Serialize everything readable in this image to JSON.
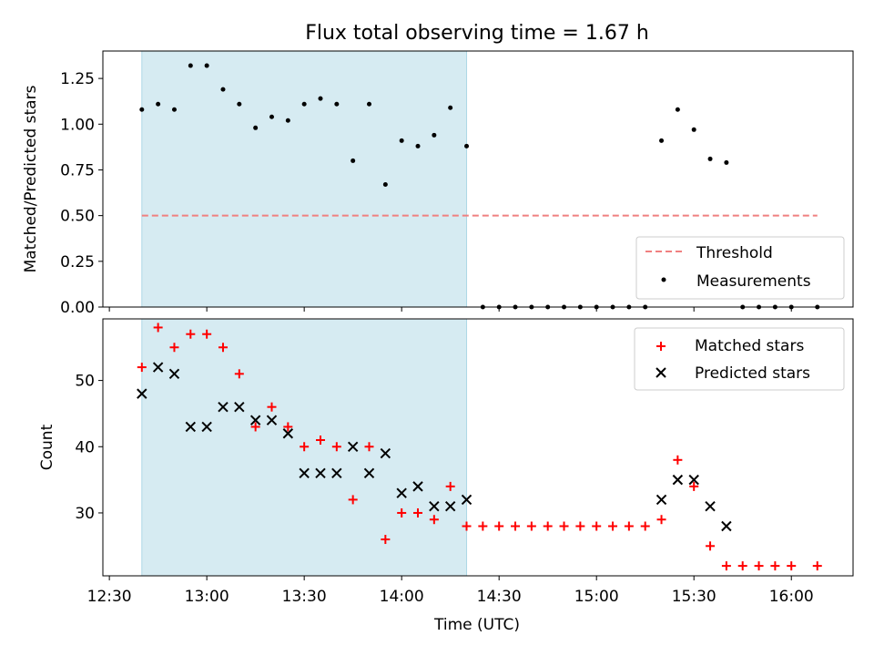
{
  "chart_data": [
    {
      "type": "scatter",
      "title": "Flux total observing time = 1.67 h",
      "ylabel": "Matched/Predicted stars",
      "xlim": [
        "12:28",
        "16:19"
      ],
      "ylim": [
        0,
        1.4
      ],
      "yticks": [
        "0.00",
        "0.25",
        "0.50",
        "0.75",
        "1.00",
        "1.25"
      ],
      "shaded_region": [
        "12:40",
        "14:20"
      ],
      "threshold": {
        "name": "Threshold",
        "value": 0.5,
        "x_range": [
          "12:40",
          "16:08"
        ],
        "color": "#f08080"
      },
      "series": [
        {
          "name": "Measurements",
          "color": "#000000",
          "points": [
            [
              "12:40",
              1.08
            ],
            [
              "12:45",
              1.11
            ],
            [
              "12:50",
              1.08
            ],
            [
              "12:55",
              1.32
            ],
            [
              "13:00",
              1.32
            ],
            [
              "13:05",
              1.19
            ],
            [
              "13:10",
              1.11
            ],
            [
              "13:15",
              0.98
            ],
            [
              "13:20",
              1.04
            ],
            [
              "13:25",
              1.02
            ],
            [
              "13:30",
              1.11
            ],
            [
              "13:35",
              1.14
            ],
            [
              "13:40",
              1.11
            ],
            [
              "13:45",
              0.8
            ],
            [
              "13:50",
              1.11
            ],
            [
              "13:55",
              0.67
            ],
            [
              "14:00",
              0.91
            ],
            [
              "14:05",
              0.88
            ],
            [
              "14:10",
              0.94
            ],
            [
              "14:15",
              1.09
            ],
            [
              "14:20",
              0.88
            ],
            [
              "14:25",
              0.0
            ],
            [
              "14:30",
              0.0
            ],
            [
              "14:35",
              0.0
            ],
            [
              "14:40",
              0.0
            ],
            [
              "14:45",
              0.0
            ],
            [
              "14:50",
              0.0
            ],
            [
              "14:55",
              0.0
            ],
            [
              "15:00",
              0.0
            ],
            [
              "15:05",
              0.0
            ],
            [
              "15:10",
              0.0
            ],
            [
              "15:15",
              0.0
            ],
            [
              "15:20",
              0.91
            ],
            [
              "15:25",
              1.08
            ],
            [
              "15:30",
              0.97
            ],
            [
              "15:35",
              0.81
            ],
            [
              "15:40",
              0.79
            ],
            [
              "15:45",
              0.0
            ],
            [
              "15:50",
              0.0
            ],
            [
              "15:55",
              0.0
            ],
            [
              "16:00",
              0.0
            ],
            [
              "16:08",
              0.0
            ]
          ]
        }
      ],
      "legend": {
        "placement": "lower-right",
        "entries": [
          "Threshold",
          "Measurements"
        ]
      }
    },
    {
      "type": "scatter",
      "xlabel": "Time (UTC)",
      "ylabel": "Count",
      "xlim": [
        "12:28",
        "16:19"
      ],
      "ylim": [
        20.5,
        59.3
      ],
      "xticks": [
        "12:30",
        "13:00",
        "13:30",
        "14:00",
        "14:30",
        "15:00",
        "15:30",
        "16:00"
      ],
      "yticks": [
        "30",
        "40",
        "50"
      ],
      "shaded_region": [
        "12:40",
        "14:20"
      ],
      "series": [
        {
          "name": "Matched stars",
          "marker": "plus",
          "color": "#ff0000",
          "points": [
            [
              "12:40",
              52
            ],
            [
              "12:45",
              58
            ],
            [
              "12:50",
              55
            ],
            [
              "12:55",
              57
            ],
            [
              "13:00",
              57
            ],
            [
              "13:05",
              55
            ],
            [
              "13:10",
              51
            ],
            [
              "13:15",
              43
            ],
            [
              "13:20",
              46
            ],
            [
              "13:25",
              43
            ],
            [
              "13:30",
              40
            ],
            [
              "13:35",
              41
            ],
            [
              "13:40",
              40
            ],
            [
              "13:45",
              32
            ],
            [
              "13:50",
              40
            ],
            [
              "13:55",
              26
            ],
            [
              "14:00",
              30
            ],
            [
              "14:05",
              30
            ],
            [
              "14:10",
              29
            ],
            [
              "14:15",
              34
            ],
            [
              "14:20",
              28
            ],
            [
              "14:25",
              28
            ],
            [
              "14:30",
              28
            ],
            [
              "14:35",
              28
            ],
            [
              "14:40",
              28
            ],
            [
              "14:45",
              28
            ],
            [
              "14:50",
              28
            ],
            [
              "14:55",
              28
            ],
            [
              "15:00",
              28
            ],
            [
              "15:05",
              28
            ],
            [
              "15:10",
              28
            ],
            [
              "15:15",
              28
            ],
            [
              "15:20",
              29
            ],
            [
              "15:25",
              38
            ],
            [
              "15:30",
              34
            ],
            [
              "15:35",
              25
            ],
            [
              "15:40",
              22
            ],
            [
              "15:45",
              22
            ],
            [
              "15:50",
              22
            ],
            [
              "15:55",
              22
            ],
            [
              "16:00",
              22
            ],
            [
              "16:08",
              22
            ]
          ]
        },
        {
          "name": "Predicted stars",
          "marker": "x",
          "color": "#000000",
          "points": [
            [
              "12:40",
              48
            ],
            [
              "12:45",
              52
            ],
            [
              "12:50",
              51
            ],
            [
              "12:55",
              43
            ],
            [
              "13:00",
              43
            ],
            [
              "13:05",
              46
            ],
            [
              "13:10",
              46
            ],
            [
              "13:15",
              44
            ],
            [
              "13:20",
              44
            ],
            [
              "13:25",
              42
            ],
            [
              "13:30",
              36
            ],
            [
              "13:35",
              36
            ],
            [
              "13:40",
              36
            ],
            [
              "13:45",
              40
            ],
            [
              "13:50",
              36
            ],
            [
              "13:55",
              39
            ],
            [
              "14:00",
              33
            ],
            [
              "14:05",
              34
            ],
            [
              "14:10",
              31
            ],
            [
              "14:15",
              31
            ],
            [
              "14:20",
              32
            ],
            [
              "15:20",
              32
            ],
            [
              "15:25",
              35
            ],
            [
              "15:30",
              35
            ],
            [
              "15:35",
              31
            ],
            [
              "15:40",
              28
            ]
          ]
        }
      ],
      "legend": {
        "placement": "upper-right",
        "entries": [
          "Matched stars",
          "Predicted stars"
        ]
      }
    }
  ],
  "colors": {
    "shade": "#add8e6",
    "threshold": "#f08080",
    "matched": "#ff0000",
    "predicted": "#000000"
  }
}
